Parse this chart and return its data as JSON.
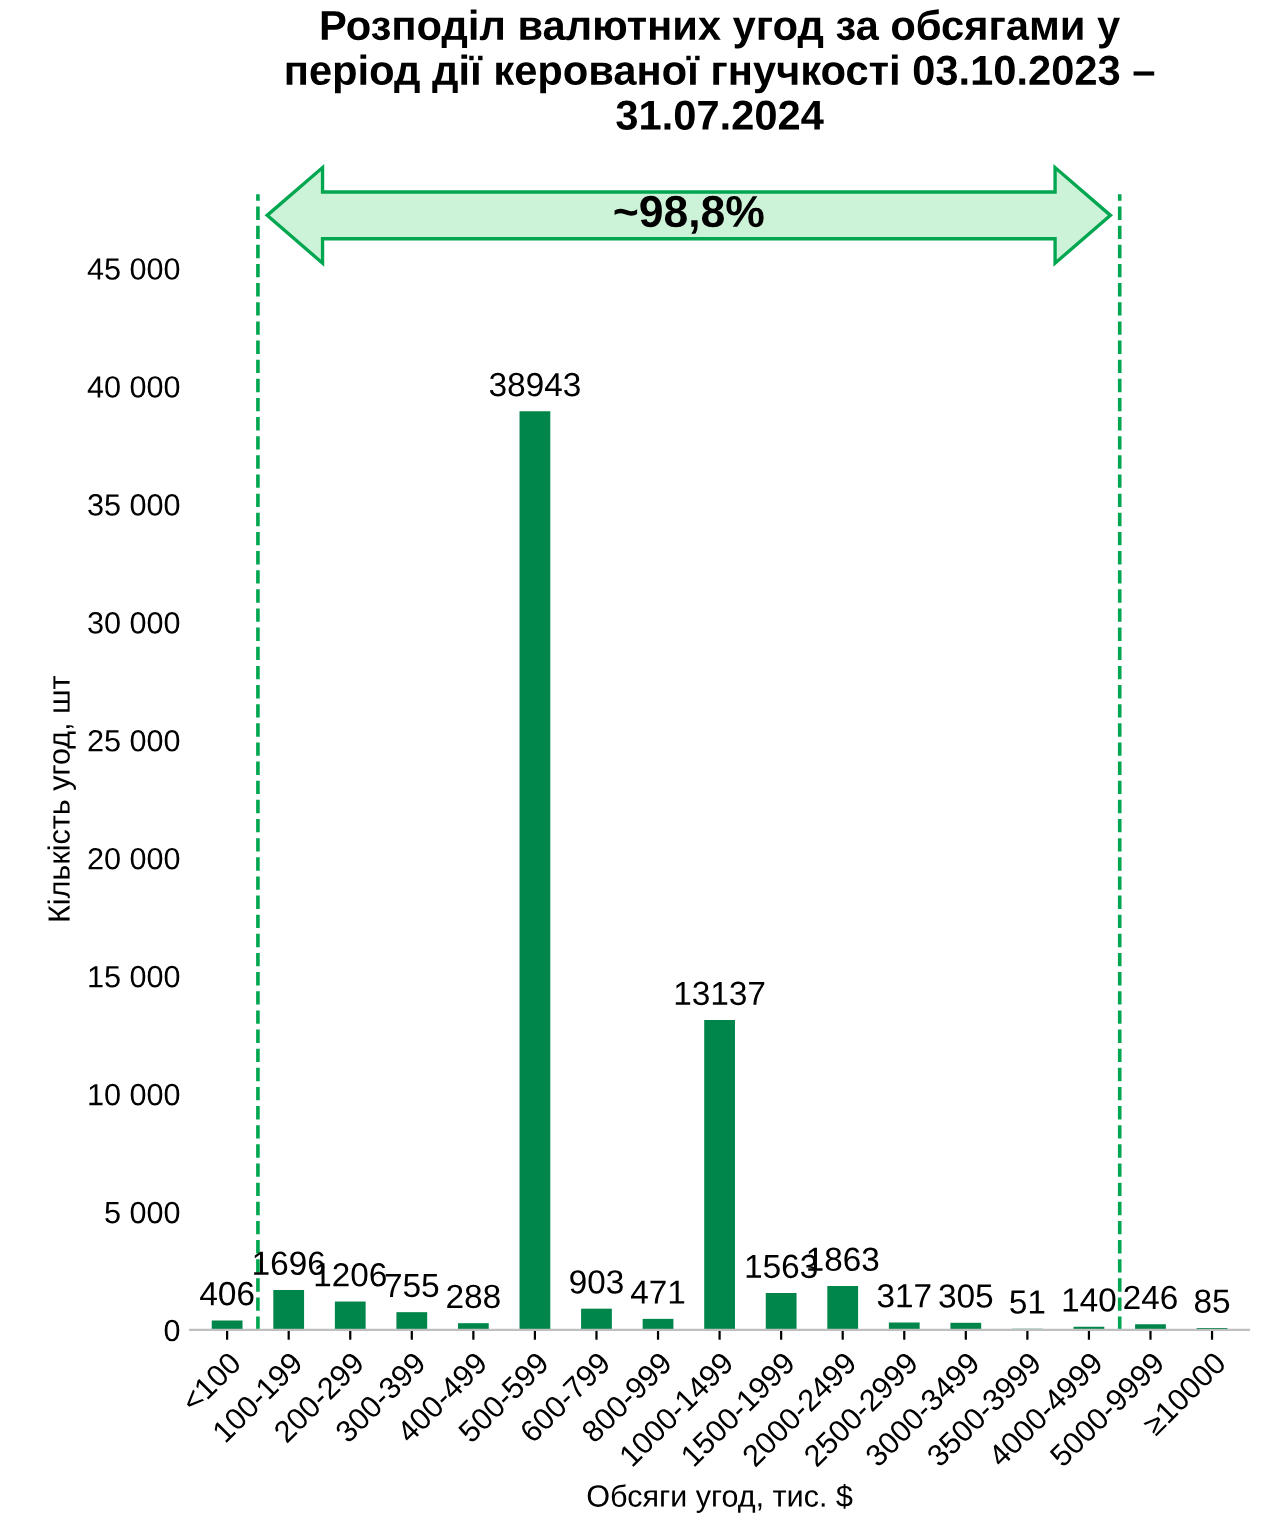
{
  "chart_data": {
    "type": "bar",
    "title": "Розподіл валютних угод за обсягами у\nперіод дії керованої гнучкості 03.10.2023 –\n31.07.2024",
    "xlabel": "Обсяги угод, тис. $",
    "ylabel": "Кількість угод, шт",
    "categories": [
      "<100",
      "100-199",
      "200-299",
      "300-399",
      "400-499",
      "500-599",
      "600-799",
      "800-999",
      "1000-1499",
      "1500-1999",
      "2000-2499",
      "2500-2999",
      "3000-3499",
      "3500-3999",
      "4000-4999",
      "5000-9999",
      "≥10000"
    ],
    "values": [
      406,
      1696,
      1206,
      755,
      288,
      38943,
      903,
      471,
      13137,
      1563,
      1863,
      317,
      305,
      51,
      140,
      246,
      85
    ],
    "color": "#00864a",
    "data_labels": true,
    "grid": false,
    "ylim": [
      0,
      45000
    ],
    "yticks": [
      0,
      {
        "value": 5000,
        "label": "5 000"
      },
      {
        "value": 10000,
        "label": "10 000"
      },
      {
        "value": 15000,
        "label": "15 000"
      },
      {
        "value": 20000,
        "label": "20 000"
      },
      {
        "value": 25000,
        "label": "25 000"
      },
      {
        "value": 30000,
        "label": "30 000"
      },
      {
        "value": 35000,
        "label": "35 000"
      },
      {
        "value": 40000,
        "label": "40 000"
      },
      {
        "value": 45000,
        "label": "45 000"
      }
    ],
    "annotations": [
      "~98,8%"
    ]
  }
}
